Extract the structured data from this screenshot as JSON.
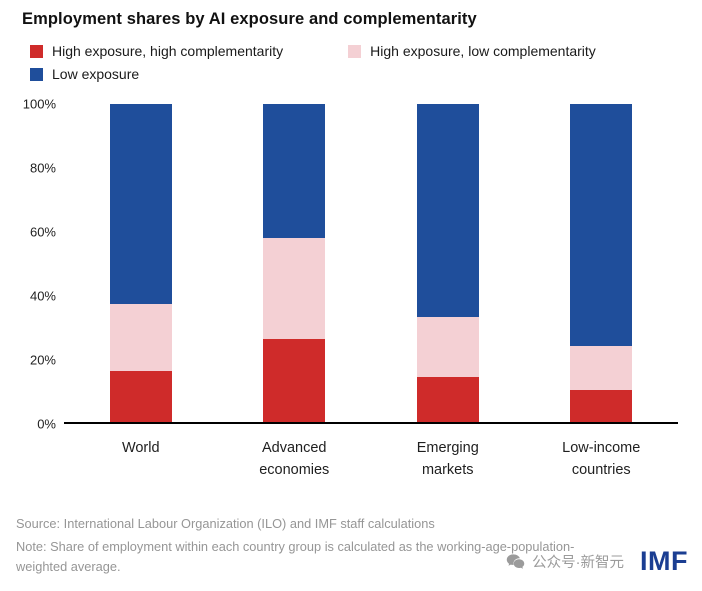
{
  "title": "Employment shares by AI exposure and complementarity",
  "legend": [
    {
      "label": "High exposure, high complementarity",
      "color": "#cf2b2a"
    },
    {
      "label": "High exposure, low complementarity",
      "color": "#f4d0d4"
    },
    {
      "label": "Low exposure",
      "color": "#1f4e9b"
    }
  ],
  "chart_data": {
    "type": "bar",
    "stacked": true,
    "title": "Employment shares by AI exposure and complementarity",
    "categories": [
      "World",
      "Advanced economies",
      "Emerging markets",
      "Low-income countries"
    ],
    "series": [
      {
        "name": "High exposure, high complementarity",
        "color": "#cf2b2a",
        "values": [
          16,
          26,
          14,
          10
        ]
      },
      {
        "name": "High exposure, low complementarity",
        "color": "#f4d0d4",
        "values": [
          21,
          32,
          19,
          14
        ]
      },
      {
        "name": "Low exposure",
        "color": "#1f4e9b",
        "values": [
          63,
          42,
          67,
          76
        ]
      }
    ],
    "xlabel": "",
    "ylabel": "",
    "ylim": [
      0,
      100
    ],
    "yticks": [
      "0%",
      "20%",
      "40%",
      "60%",
      "80%",
      "100%"
    ],
    "grid": false,
    "legend_position": "top"
  },
  "footer": {
    "source": "Source: International Labour Organization (ILO) and IMF staff calculations",
    "note": "Note: Share of employment within each country group is calculated as the working-age-population-weighted average."
  },
  "watermark": {
    "text": "公众号·新智元",
    "logo": "IMF",
    "color": "#9b9b9b",
    "logo_color": "#1b3e92"
  }
}
